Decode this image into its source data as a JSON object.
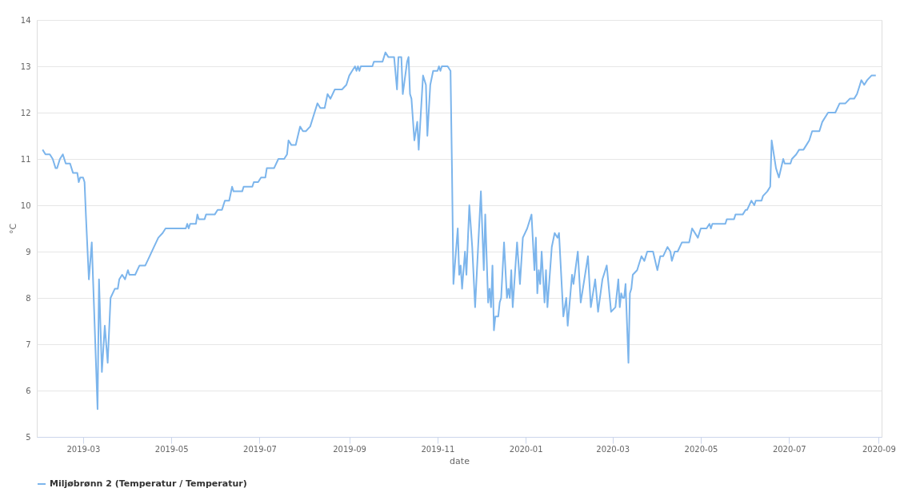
{
  "chart_data": {
    "type": "line",
    "xlabel": "date",
    "ylabel": "°C",
    "xlim": [
      "2019-01-28",
      "2020-09-03"
    ],
    "ylim": [
      5,
      14
    ],
    "xticks": [
      "2019-03",
      "2019-05",
      "2019-07",
      "2019-09",
      "2019-11",
      "2020-01",
      "2020-03",
      "2020-05",
      "2020-07",
      "2020-09"
    ],
    "yticks": [
      5,
      6,
      7,
      8,
      9,
      10,
      11,
      12,
      13,
      14
    ],
    "grid": "y",
    "legend": "bottom",
    "marker": "none",
    "line_style": "solid",
    "x": [
      "2019-02-01",
      "2019-02-03",
      "2019-02-06",
      "2019-02-08",
      "2019-02-10",
      "2019-02-11",
      "2019-02-13",
      "2019-02-15",
      "2019-02-17",
      "2019-02-20",
      "2019-02-22",
      "2019-02-25",
      "2019-02-26",
      "2019-02-27",
      "2019-03-01",
      "2019-03-02",
      "2019-03-03",
      "2019-03-05",
      "2019-03-07",
      "2019-03-08",
      "2019-03-11",
      "2019-03-12",
      "2019-03-14",
      "2019-03-16",
      "2019-03-18",
      "2019-03-20",
      "2019-03-23",
      "2019-03-25",
      "2019-03-26",
      "2019-03-28",
      "2019-03-30",
      "2019-04-01",
      "2019-04-02",
      "2019-04-06",
      "2019-04-09",
      "2019-04-13",
      "2019-04-16",
      "2019-04-19",
      "2019-04-22",
      "2019-04-25",
      "2019-04-27",
      "2019-05-11",
      "2019-05-12",
      "2019-05-13",
      "2019-05-14",
      "2019-05-18",
      "2019-05-19",
      "2019-05-20",
      "2019-05-24",
      "2019-05-25",
      "2019-05-31",
      "2019-06-02",
      "2019-06-05",
      "2019-06-07",
      "2019-06-10",
      "2019-06-12",
      "2019-06-13",
      "2019-06-19",
      "2019-06-20",
      "2019-06-26",
      "2019-06-27",
      "2019-06-30",
      "2019-07-02",
      "2019-07-05",
      "2019-07-06",
      "2019-07-11",
      "2019-07-14",
      "2019-07-18",
      "2019-07-20",
      "2019-07-21",
      "2019-07-23",
      "2019-07-26",
      "2019-07-29",
      "2019-07-31",
      "2019-08-02",
      "2019-08-05",
      "2019-08-07",
      "2019-08-10",
      "2019-08-12",
      "2019-08-15",
      "2019-08-17",
      "2019-08-19",
      "2019-08-22",
      "2019-08-27",
      "2019-08-30",
      "2019-09-01",
      "2019-09-03",
      "2019-09-05",
      "2019-09-06",
      "2019-09-07",
      "2019-09-08",
      "2019-09-09",
      "2019-09-17",
      "2019-09-18",
      "2019-09-24",
      "2019-09-26",
      "2019-09-28",
      "2019-10-02",
      "2019-10-04",
      "2019-10-05",
      "2019-10-07",
      "2019-10-08",
      "2019-10-11",
      "2019-10-12",
      "2019-10-13",
      "2019-10-14",
      "2019-10-16",
      "2019-10-18",
      "2019-10-19",
      "2019-10-22",
      "2019-10-24",
      "2019-10-25",
      "2019-10-27",
      "2019-10-29",
      "2019-11-01",
      "2019-11-02",
      "2019-11-03",
      "2019-11-04",
      "2019-11-08",
      "2019-11-10",
      "2019-11-11",
      "2019-11-12",
      "2019-11-15",
      "2019-11-16",
      "2019-11-17",
      "2019-11-18",
      "2019-11-20",
      "2019-11-21",
      "2019-11-23",
      "2019-11-25",
      "2019-11-27",
      "2019-12-01",
      "2019-12-03",
      "2019-12-04",
      "2019-12-06",
      "2019-12-07",
      "2019-12-08",
      "2019-12-09",
      "2019-12-10",
      "2019-12-11",
      "2019-12-13",
      "2019-12-14",
      "2019-12-15",
      "2019-12-17",
      "2019-12-19",
      "2019-12-20",
      "2019-12-21",
      "2019-12-22",
      "2019-12-23",
      "2019-12-26",
      "2019-12-28",
      "2019-12-30",
      "2020-01-02",
      "2020-01-05",
      "2020-01-07",
      "2020-01-08",
      "2020-01-09",
      "2020-01-10",
      "2020-01-11",
      "2020-01-12",
      "2020-01-14",
      "2020-01-15",
      "2020-01-16",
      "2020-01-19",
      "2020-01-21",
      "2020-01-23",
      "2020-01-24",
      "2020-01-27",
      "2020-01-29",
      "2020-01-30",
      "2020-02-02",
      "2020-02-03",
      "2020-02-06",
      "2020-02-08",
      "2020-02-13",
      "2020-02-15",
      "2020-02-18",
      "2020-02-20",
      "2020-02-23",
      "2020-02-26",
      "2020-02-29",
      "2020-03-03",
      "2020-03-05",
      "2020-03-06",
      "2020-03-07",
      "2020-03-08",
      "2020-03-09",
      "2020-03-10",
      "2020-03-12",
      "2020-03-13",
      "2020-03-14",
      "2020-03-15",
      "2020-03-18",
      "2020-03-21",
      "2020-03-23",
      "2020-03-25",
      "2020-03-29",
      "2020-04-01",
      "2020-04-03",
      "2020-04-05",
      "2020-04-08",
      "2020-04-10",
      "2020-04-11",
      "2020-04-13",
      "2020-04-15",
      "2020-04-18",
      "2020-04-23",
      "2020-04-25",
      "2020-04-29",
      "2020-05-01",
      "2020-05-05",
      "2020-05-07",
      "2020-05-08",
      "2020-05-09",
      "2020-05-18",
      "2020-05-19",
      "2020-05-24",
      "2020-05-25",
      "2020-05-30",
      "2020-06-01",
      "2020-06-02",
      "2020-06-05",
      "2020-06-07",
      "2020-06-08",
      "2020-06-12",
      "2020-06-13",
      "2020-06-16",
      "2020-06-18",
      "2020-06-19",
      "2020-06-22",
      "2020-06-24",
      "2020-06-27",
      "2020-06-28",
      "2020-07-02",
      "2020-07-03",
      "2020-07-06",
      "2020-07-08",
      "2020-07-11",
      "2020-07-13",
      "2020-07-15",
      "2020-07-17",
      "2020-07-22",
      "2020-07-24",
      "2020-07-28",
      "2020-08-02",
      "2020-08-05",
      "2020-08-09",
      "2020-08-12",
      "2020-08-15",
      "2020-08-17",
      "2020-08-19",
      "2020-08-20",
      "2020-08-22",
      "2020-08-24",
      "2020-08-27",
      "2020-08-30"
    ],
    "series": [
      {
        "name": "Miljøbrønn 2 (Temperatur / Temperatur)",
        "color": "#7cb5ec",
        "values": [
          11.2,
          11.1,
          11.1,
          11.0,
          10.8,
          10.8,
          11.0,
          11.1,
          10.9,
          10.9,
          10.7,
          10.7,
          10.5,
          10.6,
          10.6,
          10.5,
          9.75,
          8.4,
          9.2,
          8.3,
          5.6,
          8.4,
          6.4,
          7.4,
          6.6,
          8.0,
          8.2,
          8.2,
          8.4,
          8.5,
          8.4,
          8.6,
          8.5,
          8.5,
          8.7,
          8.7,
          8.9,
          9.1,
          9.3,
          9.4,
          9.5,
          9.5,
          9.6,
          9.5,
          9.6,
          9.6,
          9.8,
          9.7,
          9.7,
          9.8,
          9.8,
          9.9,
          9.9,
          10.1,
          10.1,
          10.4,
          10.3,
          10.3,
          10.4,
          10.4,
          10.5,
          10.5,
          10.6,
          10.6,
          10.8,
          10.8,
          11.0,
          11.0,
          11.1,
          11.4,
          11.3,
          11.3,
          11.7,
          11.6,
          11.6,
          11.7,
          11.9,
          12.2,
          12.1,
          12.1,
          12.4,
          12.3,
          12.5,
          12.5,
          12.6,
          12.8,
          12.9,
          13.0,
          12.9,
          13.0,
          12.9,
          13.0,
          13.0,
          13.1,
          13.1,
          13.3,
          13.2,
          13.2,
          12.5,
          13.2,
          13.2,
          12.4,
          13.1,
          13.2,
          12.4,
          12.3,
          11.4,
          11.8,
          11.2,
          12.8,
          12.6,
          11.5,
          12.6,
          12.9,
          12.9,
          13.0,
          12.9,
          13.0,
          13.0,
          12.9,
          10.8,
          8.3,
          9.5,
          8.5,
          8.7,
          8.2,
          9.0,
          8.5,
          10.0,
          9.1,
          7.8,
          10.3,
          8.6,
          9.8,
          7.9,
          8.2,
          7.8,
          8.7,
          7.3,
          7.6,
          7.6,
          7.9,
          8.0,
          9.2,
          8.0,
          8.2,
          8.0,
          8.6,
          7.8,
          9.2,
          8.3,
          9.3,
          9.5,
          9.8,
          8.6,
          9.3,
          8.1,
          8.6,
          8.3,
          9.0,
          7.9,
          8.6,
          7.8,
          9.1,
          9.4,
          9.3,
          9.4,
          7.6,
          8.0,
          7.4,
          8.5,
          8.3,
          9.0,
          7.9,
          8.9,
          7.8,
          8.4,
          7.7,
          8.4,
          8.7,
          7.7,
          7.8,
          8.4,
          7.8,
          8.1,
          8.0,
          8.0,
          8.3,
          6.6,
          8.1,
          8.2,
          8.5,
          8.6,
          8.9,
          8.8,
          9.0,
          9.0,
          8.6,
          8.9,
          8.9,
          9.1,
          9.0,
          8.8,
          9.0,
          9.0,
          9.2,
          9.2,
          9.5,
          9.3,
          9.5,
          9.5,
          9.6,
          9.5,
          9.6,
          9.6,
          9.7,
          9.7,
          9.8,
          9.8,
          9.9,
          9.9,
          10.1,
          10.0,
          10.1,
          10.1,
          10.2,
          10.3,
          10.4,
          11.4,
          10.8,
          10.6,
          11.0,
          10.9,
          10.9,
          11.0,
          11.1,
          11.2,
          11.2,
          11.3,
          11.4,
          11.6,
          11.6,
          11.8,
          12.0,
          12.0,
          12.2,
          12.2,
          12.3,
          12.3,
          12.4,
          12.6,
          12.7,
          12.6,
          12.7,
          12.8,
          12.8
        ]
      }
    ]
  }
}
